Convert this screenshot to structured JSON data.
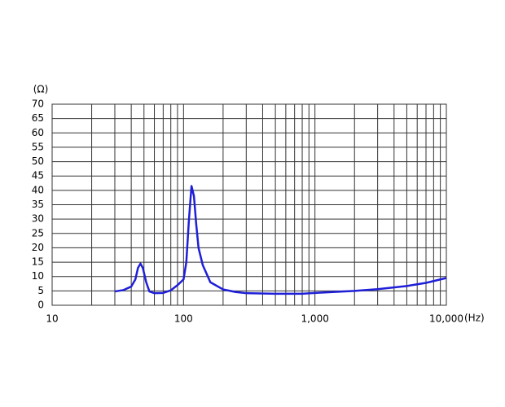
{
  "chart_data": {
    "type": "line",
    "x_label": "(Hz)",
    "y_label": "(Ω)",
    "xscale": "log",
    "xlim": [
      10,
      10000
    ],
    "ylim": [
      0,
      70
    ],
    "xticks": [
      10,
      100,
      {
        "value": 1000,
        "label": "1,000"
      },
      {
        "value": 10000,
        "label": "10,000"
      }
    ],
    "xgrid": [
      20,
      30,
      40,
      50,
      60,
      70,
      80,
      90,
      200,
      300,
      400,
      500,
      600,
      700,
      800,
      900,
      2000,
      3000,
      4000,
      5000,
      6000,
      7000,
      8000,
      9000
    ],
    "yticks": [
      0,
      5,
      10,
      15,
      20,
      25,
      30,
      35,
      40,
      45,
      50,
      55,
      60,
      65,
      70
    ],
    "grid": true,
    "series": [
      {
        "color": "#1f1fd8",
        "x": [
          30,
          35,
          40,
          43,
          45,
          47,
          49,
          52,
          55,
          60,
          70,
          80,
          90,
          100,
          105,
          110,
          115,
          120,
          125,
          130,
          140,
          160,
          200,
          250,
          300,
          500,
          800,
          1000,
          2000,
          3000,
          5000,
          7000,
          10000
        ],
        "values": [
          4.8,
          5.3,
          6.5,
          9,
          13,
          14.5,
          13,
          8,
          4.8,
          4.2,
          4.3,
          5.2,
          7,
          9,
          15,
          30,
          41.5,
          38,
          28,
          20,
          14,
          8,
          5.5,
          4.6,
          4.2,
          4.0,
          4.0,
          4.3,
          5.0,
          5.6,
          6.7,
          7.8,
          9.5
        ]
      }
    ]
  }
}
